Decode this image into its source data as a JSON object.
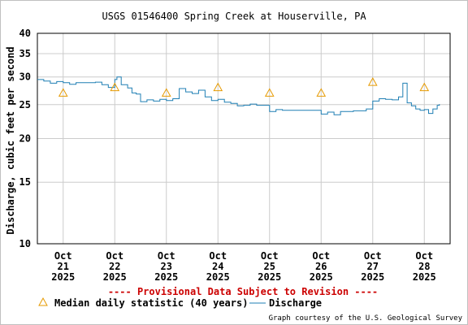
{
  "chart_data": {
    "type": "line",
    "title": "USGS 01546400 Spring Creek at Houserville, PA",
    "ylabel": "Discharge, cubic feet per second",
    "xlabel": "",
    "y_scale": "log",
    "ylim": [
      10,
      40
    ],
    "y_ticks": [
      10,
      15,
      20,
      25,
      30,
      35,
      40
    ],
    "x_range_days": [
      "2025-10-20T12:00",
      "2025-10-28T12:00"
    ],
    "x_ticks": [
      {
        "date": "2025-10-21",
        "line1": "Oct",
        "line2": "21",
        "line3": "2025"
      },
      {
        "date": "2025-10-22",
        "line1": "Oct",
        "line2": "22",
        "line3": "2025"
      },
      {
        "date": "2025-10-23",
        "line1": "Oct",
        "line2": "23",
        "line3": "2025"
      },
      {
        "date": "2025-10-24",
        "line1": "Oct",
        "line2": "24",
        "line3": "2025"
      },
      {
        "date": "2025-10-25",
        "line1": "Oct",
        "line2": "25",
        "line3": "2025"
      },
      {
        "date": "2025-10-26",
        "line1": "Oct",
        "line2": "26",
        "line3": "2025"
      },
      {
        "date": "2025-10-27",
        "line1": "Oct",
        "line2": "27",
        "line3": "2025"
      },
      {
        "date": "2025-10-28",
        "line1": "Oct",
        "line2": "28",
        "line3": "2025"
      }
    ],
    "grid": true,
    "series": [
      {
        "name": "Discharge",
        "color": "#1f7fb4",
        "points": [
          [
            "2025-10-20T12:00",
            29.5
          ],
          [
            "2025-10-20T15:00",
            29.2
          ],
          [
            "2025-10-20T18:00",
            28.8
          ],
          [
            "2025-10-20T21:00",
            29.1
          ],
          [
            "2025-10-21T00:00",
            28.9
          ],
          [
            "2025-10-21T03:00",
            28.6
          ],
          [
            "2025-10-21T06:00",
            28.9
          ],
          [
            "2025-10-21T09:00",
            28.9
          ],
          [
            "2025-10-21T12:00",
            28.9
          ],
          [
            "2025-10-21T15:00",
            29.0
          ],
          [
            "2025-10-21T18:00",
            28.5
          ],
          [
            "2025-10-21T21:00",
            28.0
          ],
          [
            "2025-10-22T00:00",
            29.5
          ],
          [
            "2025-10-22T01:00",
            30.0
          ],
          [
            "2025-10-22T03:00",
            28.5
          ],
          [
            "2025-10-22T06:00",
            27.9
          ],
          [
            "2025-10-22T08:00",
            27.0
          ],
          [
            "2025-10-22T10:00",
            26.8
          ],
          [
            "2025-10-22T12:00",
            25.5
          ],
          [
            "2025-10-22T15:00",
            25.8
          ],
          [
            "2025-10-22T18:00",
            25.6
          ],
          [
            "2025-10-22T21:00",
            25.9
          ],
          [
            "2025-10-23T00:00",
            25.7
          ],
          [
            "2025-10-23T03:00",
            26.0
          ],
          [
            "2025-10-23T06:00",
            27.8
          ],
          [
            "2025-10-23T09:00",
            27.2
          ],
          [
            "2025-10-23T12:00",
            26.9
          ],
          [
            "2025-10-23T15:00",
            27.5
          ],
          [
            "2025-10-23T18:00",
            26.3
          ],
          [
            "2025-10-23T21:00",
            25.7
          ],
          [
            "2025-10-24T00:00",
            25.9
          ],
          [
            "2025-10-24T03:00",
            25.4
          ],
          [
            "2025-10-24T06:00",
            25.2
          ],
          [
            "2025-10-24T09:00",
            24.8
          ],
          [
            "2025-10-24T12:00",
            24.9
          ],
          [
            "2025-10-24T15:00",
            25.1
          ],
          [
            "2025-10-24T18:00",
            24.9
          ],
          [
            "2025-10-24T21:00",
            24.9
          ],
          [
            "2025-10-25T00:00",
            23.9
          ],
          [
            "2025-10-25T03:00",
            24.2
          ],
          [
            "2025-10-25T06:00",
            24.1
          ],
          [
            "2025-10-25T09:00",
            24.1
          ],
          [
            "2025-10-25T12:00",
            24.1
          ],
          [
            "2025-10-25T15:00",
            24.1
          ],
          [
            "2025-10-25T18:00",
            24.1
          ],
          [
            "2025-10-25T21:00",
            24.1
          ],
          [
            "2025-10-26T00:00",
            23.5
          ],
          [
            "2025-10-26T03:00",
            23.8
          ],
          [
            "2025-10-26T06:00",
            23.4
          ],
          [
            "2025-10-26T09:00",
            23.9
          ],
          [
            "2025-10-26T12:00",
            23.9
          ],
          [
            "2025-10-26T15:00",
            24.0
          ],
          [
            "2025-10-26T18:00",
            24.0
          ],
          [
            "2025-10-26T21:00",
            24.3
          ],
          [
            "2025-10-27T00:00",
            25.6
          ],
          [
            "2025-10-27T03:00",
            26.0
          ],
          [
            "2025-10-27T06:00",
            25.9
          ],
          [
            "2025-10-27T09:00",
            25.8
          ],
          [
            "2025-10-27T12:00",
            26.3
          ],
          [
            "2025-10-27T14:00",
            28.8
          ],
          [
            "2025-10-27T16:00",
            25.3
          ],
          [
            "2025-10-27T18:00",
            24.8
          ],
          [
            "2025-10-27T20:00",
            24.3
          ],
          [
            "2025-10-27T22:00",
            24.1
          ],
          [
            "2025-10-28T00:00",
            24.2
          ],
          [
            "2025-10-28T02:00",
            23.6
          ],
          [
            "2025-10-28T04:00",
            24.3
          ],
          [
            "2025-10-28T06:00",
            24.9
          ],
          [
            "2025-10-28T07:00",
            25.1
          ]
        ]
      },
      {
        "name": "Median daily statistic (40 years)",
        "color": "#e69a00",
        "marker": "triangle",
        "points": [
          [
            "2025-10-21T00:00",
            27.0
          ],
          [
            "2025-10-22T00:00",
            28.0
          ],
          [
            "2025-10-23T00:00",
            27.0
          ],
          [
            "2025-10-24T00:00",
            28.0
          ],
          [
            "2025-10-25T00:00",
            27.0
          ],
          [
            "2025-10-26T00:00",
            27.0
          ],
          [
            "2025-10-27T00:00",
            29.0
          ],
          [
            "2025-10-28T00:00",
            28.0
          ]
        ]
      }
    ],
    "provisional_note": "---- Provisional Data Subject to Revision ----",
    "provisional_color": "#cc0000",
    "legend_position": "bottom",
    "credit": "Graph courtesy of the U.S. Geological Survey"
  }
}
